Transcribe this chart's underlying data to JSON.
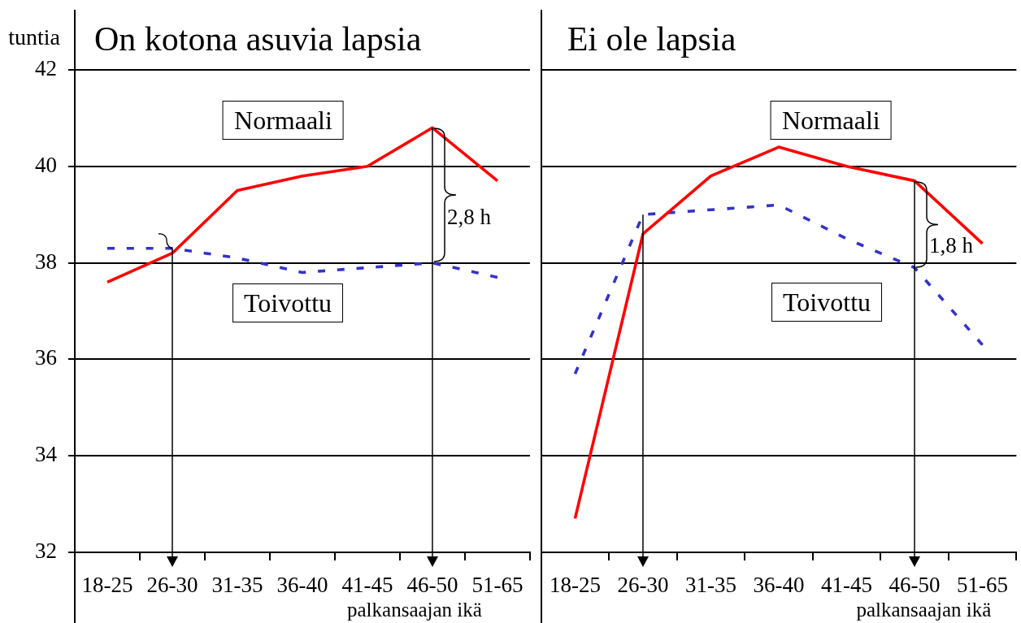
{
  "chart_data": [
    {
      "type": "line",
      "title": "On kotona asuvia lapsia",
      "ylabel": "tuntia",
      "xlabel": "palkansaajan ikä",
      "categories": [
        "18-25",
        "26-30",
        "31-35",
        "36-40",
        "41-45",
        "46-50",
        "51-65"
      ],
      "series": [
        {
          "name": "Normaali",
          "color": "#ff0000",
          "line_style": "solid",
          "values": [
            37.6,
            38.2,
            39.5,
            39.8,
            40.0,
            40.8,
            39.7
          ]
        },
        {
          "name": "Toivottu",
          "color": "#3333cc",
          "line_style": "dashed",
          "values": [
            38.3,
            38.3,
            38.1,
            37.8,
            37.9,
            38.0,
            37.7
          ]
        }
      ],
      "ylim": [
        32,
        42
      ],
      "yticks": [
        32,
        34,
        36,
        38,
        40,
        42
      ],
      "grid": "y",
      "marker": "none",
      "ref_lines": [
        {
          "axis": "x",
          "value": "26-30",
          "color": "#000000"
        },
        {
          "axis": "x",
          "value": "46-50",
          "color": "#000000"
        }
      ],
      "annotations": [
        "2,8 h"
      ]
    },
    {
      "type": "line",
      "title": "Ei ole lapsia",
      "xlabel": "palkansaajan ikä",
      "categories": [
        "18-25",
        "26-30",
        "31-35",
        "36-40",
        "41-45",
        "46-50",
        "51-65"
      ],
      "series": [
        {
          "name": "Normaali",
          "color": "#ff0000",
          "line_style": "solid",
          "values": [
            32.7,
            38.6,
            39.8,
            40.4,
            40.0,
            39.7,
            38.4
          ]
        },
        {
          "name": "Toivottu",
          "color": "#3333cc",
          "line_style": "dashed",
          "values": [
            35.7,
            39.0,
            39.1,
            39.2,
            38.5,
            37.9,
            36.3
          ]
        }
      ],
      "ylim": [
        32,
        42
      ],
      "yticks": [
        32,
        34,
        36,
        38,
        40,
        42
      ],
      "grid": "y",
      "marker": "none",
      "tick_labels": "x",
      "ref_lines": [
        {
          "axis": "x",
          "value": "26-30",
          "color": "#000000"
        },
        {
          "axis": "x",
          "value": "46-50",
          "color": "#000000"
        }
      ],
      "annotations": [
        {
          "text": "1,8 h",
          "x": "46-50",
          "y": 39.7
        }
      ]
    }
  ]
}
